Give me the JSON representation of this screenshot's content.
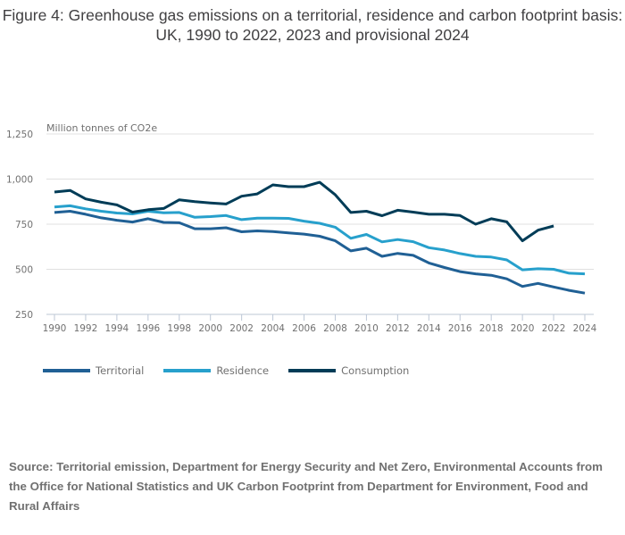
{
  "title": "Figure 4: Greenhouse gas emissions on a territorial, residence and carbon footprint basis: UK, 1990 to 2022, 2023 and provisional 2024",
  "source": "Source: Territorial emission, Department for Energy Security and Net Zero, Environmental Accounts from the Office for National Statistics and UK Carbon Footprint from Department for Environment, Food and Rural Affairs",
  "chart_data": {
    "type": "line",
    "title": "Figure 4: Greenhouse gas emissions on a territorial, residence and carbon footprint basis: UK, 1990 to 2022, 2023 and provisional 2024",
    "xlabel": "",
    "ylabel": "Million tonnes of CO2e",
    "ylim": [
      250,
      1250
    ],
    "yticks": [
      250,
      500,
      750,
      1000,
      1250
    ],
    "ytick_labels": [
      "250",
      "500",
      "750",
      "1,000",
      "1,250"
    ],
    "xlim": [
      1990,
      2024
    ],
    "xticks": [
      1990,
      1992,
      1994,
      1996,
      1998,
      2000,
      2002,
      2004,
      2006,
      2008,
      2010,
      2012,
      2014,
      2016,
      2018,
      2020,
      2022,
      2024
    ],
    "grid": true,
    "legend_position": "bottom-left",
    "x": [
      1990,
      1991,
      1992,
      1993,
      1994,
      1995,
      1996,
      1997,
      1998,
      1999,
      2000,
      2001,
      2002,
      2003,
      2004,
      2005,
      2006,
      2007,
      2008,
      2009,
      2010,
      2011,
      2012,
      2013,
      2014,
      2015,
      2016,
      2017,
      2018,
      2019,
      2020,
      2021,
      2022,
      2023,
      2024
    ],
    "series": [
      {
        "name": "Territorial",
        "color": "#206095",
        "values": [
          815,
          822,
          805,
          785,
          772,
          762,
          780,
          760,
          758,
          725,
          725,
          730,
          708,
          713,
          709,
          702,
          695,
          683,
          658,
          602,
          617,
          572,
          588,
          577,
          535,
          510,
          487,
          475,
          467,
          447,
          405,
          422,
          402,
          383,
          368
        ]
      },
      {
        "name": "Residence",
        "color": "#27a0cc",
        "values": [
          845,
          852,
          835,
          822,
          812,
          807,
          822,
          813,
          815,
          788,
          792,
          798,
          775,
          783,
          783,
          782,
          767,
          755,
          733,
          672,
          693,
          652,
          665,
          653,
          620,
          607,
          587,
          572,
          568,
          552,
          497,
          503,
          500,
          478,
          475
        ]
      },
      {
        "name": "Consumption",
        "color": "#003c57",
        "values": [
          928,
          937,
          890,
          872,
          857,
          817,
          830,
          837,
          885,
          875,
          868,
          862,
          905,
          918,
          968,
          958,
          958,
          982,
          913,
          815,
          822,
          797,
          827,
          817,
          805,
          805,
          798,
          750,
          780,
          763,
          658,
          717,
          740,
          null,
          null
        ]
      }
    ]
  }
}
